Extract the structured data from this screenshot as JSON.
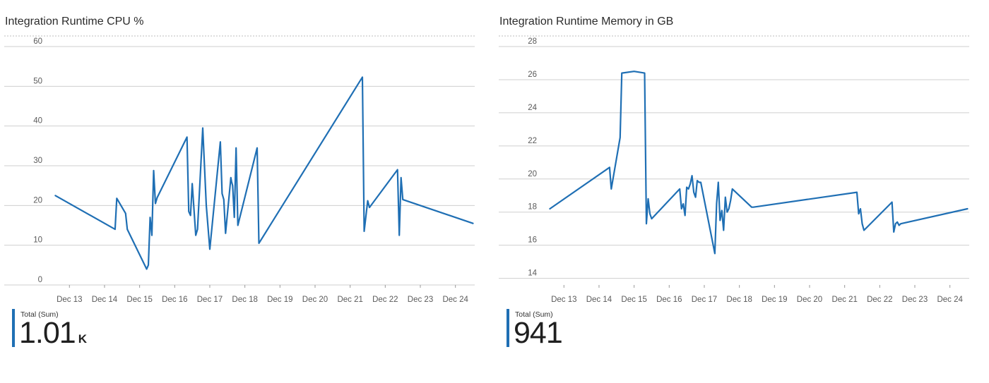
{
  "charts": [
    {
      "id": "cpu",
      "title": "Integration Runtime CPU %",
      "total_label": "Total (Sum)",
      "total_value": "1.01",
      "total_unit": "K",
      "color": "#1f6fb4",
      "accent": "#1f6fb4"
    },
    {
      "id": "mem",
      "title": "Integration Runtime Memory in GB",
      "total_label": "Total (Sum)",
      "total_value": "941",
      "total_unit": "",
      "color": "#1f6fb4",
      "accent": "#1f6fb4"
    }
  ],
  "chart_data": [
    {
      "type": "line",
      "title": "Integration Runtime CPU %",
      "xlabel": "",
      "ylabel": "",
      "x_ticks": [
        "Dec 13",
        "Dec 14",
        "Dec 15",
        "Dec 16",
        "Dec 17",
        "Dec 18",
        "Dec 19",
        "Dec 20",
        "Dec 21",
        "Dec 22",
        "Dec 23",
        "Dec 24"
      ],
      "y_ticks": [
        0,
        10,
        20,
        30,
        40,
        50,
        60
      ],
      "xlim": [
        12.35,
        24.55
      ],
      "ylim": [
        0,
        60
      ],
      "grid": true,
      "series": [
        {
          "x": [
            12.6,
            14.3,
            14.35,
            14.6,
            14.65,
            15.2,
            15.25,
            15.3,
            15.35,
            15.4,
            15.45,
            15.5,
            16.35,
            16.4,
            16.45,
            16.5,
            16.6,
            16.65,
            16.8,
            16.9,
            17.0,
            17.3,
            17.35,
            17.4,
            17.45,
            17.6,
            17.62,
            17.65,
            17.7,
            17.75,
            17.8,
            18.35,
            18.4,
            21.35,
            21.4,
            21.5,
            21.55,
            22.35,
            22.4,
            22.45,
            22.5,
            24.5
          ],
          "y": [
            22.5,
            14,
            21.8,
            18,
            14,
            4,
            5,
            17,
            12.5,
            28.8,
            20.5,
            22,
            37.2,
            18.5,
            17.5,
            25.5,
            12.5,
            14,
            39.5,
            20,
            9,
            36,
            23,
            21.5,
            13,
            27,
            26,
            25,
            17,
            34.5,
            15,
            34.5,
            10.5,
            52.3,
            13.5,
            21.2,
            19.5,
            29,
            12.5,
            27,
            21.5,
            15.5
          ]
        }
      ]
    },
    {
      "type": "line",
      "title": "Integration Runtime Memory in GB",
      "xlabel": "",
      "ylabel": "",
      "x_ticks": [
        "Dec 13",
        "Dec 14",
        "Dec 15",
        "Dec 16",
        "Dec 17",
        "Dec 18",
        "Dec 19",
        "Dec 20",
        "Dec 21",
        "Dec 22",
        "Dec 23",
        "Dec 24"
      ],
      "y_ticks": [
        14,
        16,
        18,
        20,
        22,
        24,
        26,
        28
      ],
      "xlim": [
        12.35,
        24.55
      ],
      "ylim": [
        13.6,
        28
      ],
      "grid": true,
      "series": [
        {
          "x": [
            12.6,
            14.3,
            14.35,
            14.6,
            14.65,
            15.0,
            15.3,
            15.35,
            15.4,
            15.45,
            15.5,
            16.3,
            16.35,
            16.4,
            16.45,
            16.5,
            16.55,
            16.6,
            16.65,
            16.7,
            16.75,
            16.8,
            16.85,
            16.9,
            17.3,
            17.35,
            17.4,
            17.45,
            17.5,
            17.55,
            17.6,
            17.65,
            17.7,
            17.75,
            17.8,
            18.35,
            18.4,
            21.35,
            21.4,
            21.45,
            21.5,
            21.55,
            22.35,
            22.4,
            22.45,
            22.5,
            22.55,
            22.6,
            24.5
          ],
          "y": [
            18.2,
            20.7,
            19.4,
            22.5,
            26.4,
            26.5,
            26.4,
            17.3,
            18.8,
            17.9,
            17.6,
            19.4,
            18.2,
            18.5,
            17.8,
            19.5,
            19.4,
            19.7,
            20.2,
            19.2,
            18.9,
            19.9,
            19.8,
            19.8,
            15.5,
            18.5,
            19.8,
            17.5,
            18.1,
            16.9,
            18.9,
            18.0,
            18.2,
            18.7,
            19.4,
            18.3,
            18.3,
            19.2,
            17.9,
            18.2,
            17.3,
            16.9,
            18.6,
            16.8,
            17.3,
            17.4,
            17.2,
            17.3,
            18.2
          ]
        }
      ]
    }
  ]
}
